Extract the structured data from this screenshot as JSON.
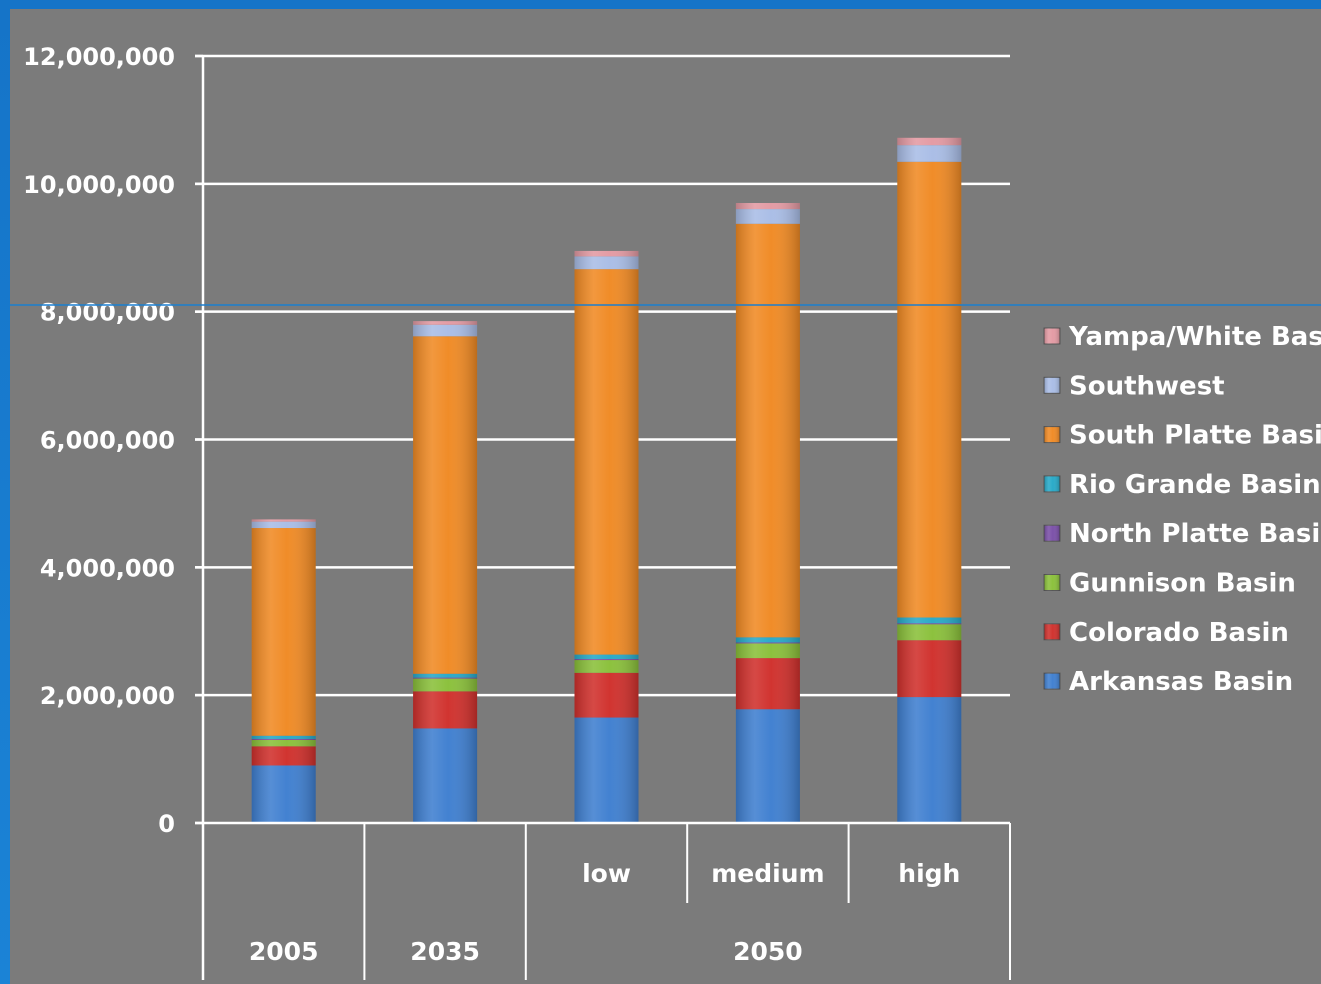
{
  "chart_data": {
    "type": "bar",
    "stacked": true,
    "title": "",
    "xlabel": "",
    "ylabel": "",
    "ylim": [
      0,
      12000000
    ],
    "y_ticks": [
      0,
      2000000,
      4000000,
      6000000,
      8000000,
      10000000,
      12000000
    ],
    "y_tick_labels": [
      "0",
      "2,000,000",
      "4,000,000",
      "6,000,000",
      "8,000,000",
      "10,000,000",
      "12,000,000"
    ],
    "grid": true,
    "legend_position": "right",
    "categories": [
      "2005",
      "2035",
      "low",
      "medium",
      "high"
    ],
    "category_groups": [
      {
        "label": "2005",
        "span": 1
      },
      {
        "label": "2035",
        "span": 1
      },
      {
        "label": "2050",
        "span": 3
      }
    ],
    "sub_labels": [
      "",
      "",
      "low",
      "medium",
      "high"
    ],
    "series": [
      {
        "name": "Arkansas Basin",
        "color": "#3f7fd0",
        "values": [
          900000,
          1480000,
          1650000,
          1780000,
          1970000
        ]
      },
      {
        "name": "Colorado Basin",
        "color": "#d0302c",
        "values": [
          300000,
          580000,
          700000,
          800000,
          890000
        ]
      },
      {
        "name": "Gunnison Basin",
        "color": "#8ac03a",
        "values": [
          100000,
          200000,
          200000,
          230000,
          250000
        ]
      },
      {
        "name": "North Platte Basin",
        "color": "#7a4fa8",
        "values": [
          15000,
          15000,
          15000,
          15000,
          15000
        ]
      },
      {
        "name": "Rio Grande Basin",
        "color": "#27a9c8",
        "values": [
          50000,
          60000,
          70000,
          80000,
          90000
        ]
      },
      {
        "name": "South Platte Basin",
        "color": "#f08a24",
        "values": [
          3250000,
          5280000,
          6030000,
          6470000,
          7130000
        ]
      },
      {
        "name": "Southwest",
        "color": "#a9bde6",
        "values": [
          100000,
          180000,
          200000,
          230000,
          260000
        ]
      },
      {
        "name": "Yampa/White Basin",
        "color": "#e39aa3",
        "values": [
          35000,
          57000,
          85000,
          95000,
          115000
        ]
      }
    ]
  }
}
